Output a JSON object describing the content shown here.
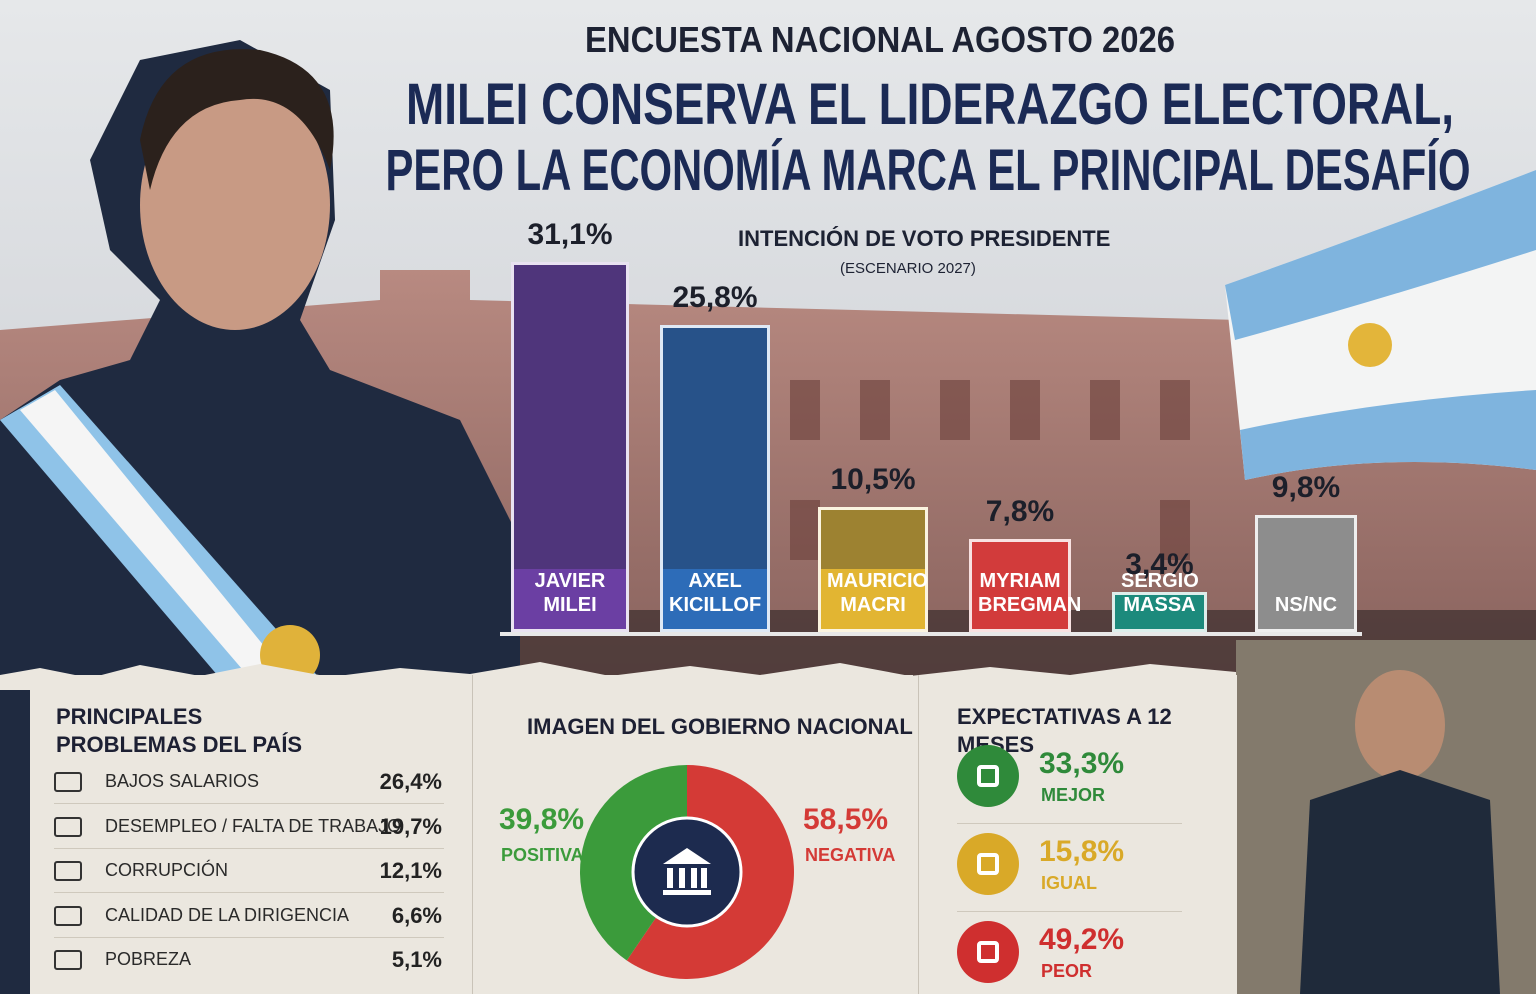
{
  "header": {
    "kicker": "ENCUESTA NACIONAL AGOSTO 2026",
    "headline": [
      "MILEI CONSERVA EL LIDERAZGO ELECTORAL,",
      "PERO LA ECONOMÍA MARCA EL PRINCIPAL DESAFÍO"
    ]
  },
  "chart_data": [
    {
      "type": "bar",
      "title": "INTENCIÓN DE VOTO PRESIDENTE",
      "subtitle": "(ESCENARIO 2027)",
      "categories": [
        "JAVIER MILEI",
        "AXEL KICILLOF",
        "MAURICIO MACRI",
        "MYRIAM BREGMAN",
        "SERGIO MASSA",
        "NS/NC"
      ],
      "values": [
        31.1,
        25.8,
        10.5,
        7.8,
        3.4,
        9.8
      ],
      "value_labels": [
        "31,1%",
        "25,8%",
        "10,5%",
        "7,8%",
        "3,4%",
        "9,8%"
      ],
      "colors": [
        "#6b3fa3",
        "#2d6cb8",
        "#e2b532",
        "#d23b3b",
        "#1c8a7c",
        "#8d8d8d"
      ]
    },
    {
      "type": "table",
      "title": "PRINCIPALES PROBLEMAS DEL PAÍS",
      "categories": [
        "BAJOS SALARIOS",
        "DESEMPLEO / FALTA DE TRABAJO",
        "CORRUPCIÓN",
        "CALIDAD DE LA DIRIGENCIA",
        "POBREZA"
      ],
      "values": [
        26.4,
        19.7,
        12.1,
        6.6,
        5.1
      ],
      "value_labels": [
        "26,4%",
        "19,7%",
        "12,1%",
        "6,6%",
        "5,1%"
      ]
    },
    {
      "type": "pie",
      "title": "IMAGEN DEL GOBIERNO NACIONAL",
      "categories": [
        "POSITIVA",
        "NEGATIVA"
      ],
      "values": [
        39.8,
        58.5
      ],
      "value_labels": [
        "39,8%",
        "58,5%"
      ],
      "colors": [
        "#3b9b3b",
        "#d43a36"
      ]
    },
    {
      "type": "table",
      "title": "EXPECTATIVAS A 12 MESES",
      "categories": [
        "MEJOR",
        "IGUAL",
        "PEOR"
      ],
      "values": [
        33.3,
        15.8,
        49.2
      ],
      "value_labels": [
        "33,3%",
        "15,8%",
        "49,2%"
      ],
      "colors": [
        "#2f8a3a",
        "#d9a928",
        "#cf2f2f"
      ]
    }
  ]
}
